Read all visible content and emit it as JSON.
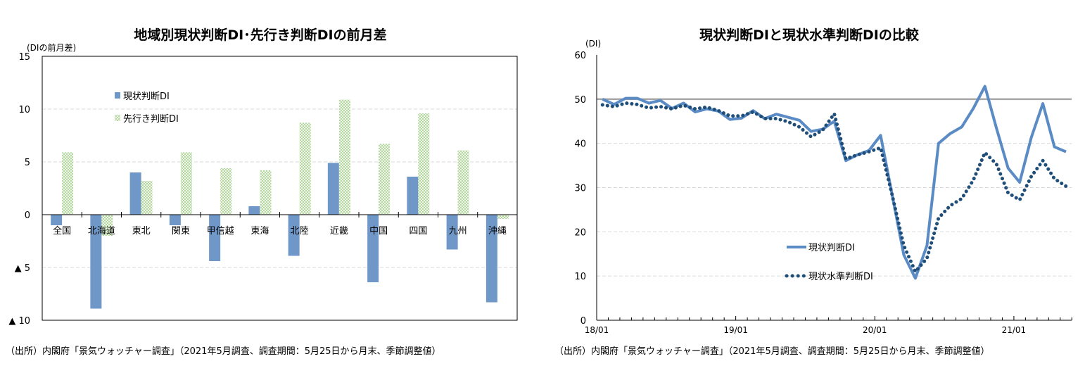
{
  "colors": {
    "present": "#6f98c9",
    "outlook": "#9cc983",
    "level": "#1f4e79",
    "reference": "#a6a6a6",
    "grid": "#d9d9d9"
  },
  "chart_data": [
    {
      "type": "bar",
      "title": "地域別現状判断DI･先行き判断DIの前月差",
      "ylabel": "(DIの前月差)",
      "ylim": [
        -10,
        15
      ],
      "yticks": [
        15,
        10,
        5,
        0,
        -5,
        -10
      ],
      "ytick_labels": [
        "15",
        "10",
        "5",
        "0",
        "▲ 5",
        "▲ 10"
      ],
      "grid": true,
      "legend": "upper-left",
      "categories": [
        "全国",
        "北海道",
        "東北",
        "関東",
        "甲信越",
        "東海",
        "北陸",
        "近畿",
        "中国",
        "四国",
        "九州",
        "沖縄"
      ],
      "series": [
        {
          "name": "現状判断DI",
          "values": [
            -1.0,
            -8.9,
            4.0,
            -1.0,
            -4.4,
            0.8,
            -3.9,
            4.9,
            -6.4,
            3.6,
            -3.3,
            -8.3
          ]
        },
        {
          "name": "先行き判断DI",
          "values": [
            5.9,
            -2.0,
            3.2,
            5.9,
            4.4,
            4.2,
            8.7,
            10.9,
            6.7,
            9.6,
            6.1,
            -0.4
          ]
        }
      ],
      "source": "（出所）内閣府「景気ウォッチャー調査」（2021年5月調査、調査期間：5月25日から月末、季節調整値）"
    },
    {
      "type": "line",
      "title": "現状判断DIと現状水準判断DIの比較",
      "ylabel": "(DI)",
      "ylim": [
        0,
        60
      ],
      "yticks": [
        0,
        10,
        20,
        30,
        40,
        50,
        60
      ],
      "x_range": [
        "2018/01",
        "2021/05"
      ],
      "xtick_labels": [
        "18/01",
        "19/01",
        "20/01",
        "21/01"
      ],
      "reference_line": 50,
      "grid": true,
      "legend": "center-left",
      "series": [
        {
          "name": "現状判断DI",
          "style": "solid",
          "values": [
            50.0,
            48.8,
            50.2,
            50.2,
            49.1,
            49.7,
            47.9,
            49.1,
            47.1,
            47.8,
            47.3,
            45.4,
            45.7,
            47.4,
            45.6,
            46.6,
            45.9,
            45.2,
            42.7,
            43.2,
            45.0,
            36.1,
            37.4,
            38.4,
            41.8,
            28.3,
            14.8,
            9.5,
            16.9,
            40.0,
            42.2,
            43.7,
            47.9,
            52.9,
            43.4,
            34.4,
            31.2,
            41.3,
            49.0,
            39.2,
            38.1
          ]
        },
        {
          "name": "現状水準判断DI",
          "style": "dotted",
          "values": [
            48.7,
            48.3,
            49.1,
            48.8,
            48.0,
            48.3,
            47.8,
            48.6,
            47.8,
            48.2,
            47.4,
            46.2,
            46.2,
            47.1,
            45.6,
            45.6,
            44.9,
            43.7,
            41.5,
            43.0,
            46.7,
            36.5,
            37.4,
            38.1,
            39.0,
            28.3,
            16.9,
            11.0,
            14.0,
            23.1,
            25.9,
            27.5,
            31.7,
            37.9,
            35.3,
            28.8,
            27.2,
            32.5,
            36.1,
            32.0,
            30.3
          ]
        }
      ],
      "source": "（出所）内閣府「景気ウォッチャー調査」（2021年5月調査、調査期間：5月25日から月末、季節調整値）"
    }
  ]
}
